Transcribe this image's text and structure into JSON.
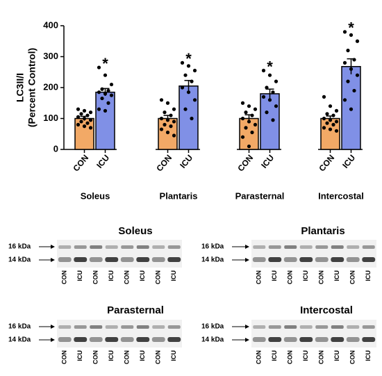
{
  "chart_data": {
    "type": "bar",
    "y_label": [
      "LC3II/I",
      "(Percent Control)"
    ],
    "categories": [
      "Soleus",
      "Plantaris",
      "Parasternal",
      "Intercostal"
    ],
    "series": [
      {
        "name": "CON",
        "color": "#f2a966",
        "values": [
          100,
          100,
          100,
          100
        ],
        "errors": [
          7,
          10,
          12,
          8
        ],
        "points": [
          [
            130,
            125,
            120,
            115,
            110,
            105,
            100,
            95,
            90,
            85,
            80,
            75,
            70
          ],
          [
            160,
            150,
            130,
            120,
            110,
            100,
            95,
            90,
            80,
            75,
            65,
            55,
            45
          ],
          [
            150,
            140,
            130,
            120,
            110,
            100,
            90,
            80,
            70,
            55,
            40,
            10
          ],
          [
            170,
            140,
            125,
            115,
            110,
            100,
            95,
            90,
            85,
            80,
            70,
            65,
            60
          ]
        ]
      },
      {
        "name": "ICU",
        "color": "#8090e6",
        "values": [
          185,
          205,
          180,
          268
        ],
        "errors": [
          12,
          18,
          15,
          25
        ],
        "points": [
          [
            265,
            240,
            210,
            195,
            190,
            185,
            180,
            175,
            165,
            150,
            130,
            125
          ],
          [
            280,
            270,
            255,
            240,
            220,
            200,
            185,
            160,
            130,
            100
          ],
          [
            255,
            240,
            220,
            200,
            185,
            170,
            160,
            140,
            120,
            95
          ],
          [
            380,
            370,
            350,
            320,
            290,
            280,
            260,
            240,
            220,
            190,
            160,
            130
          ]
        ]
      }
    ],
    "annotations": [
      "*",
      "*",
      "*",
      "*"
    ],
    "ylim": [
      0,
      400
    ],
    "yticks": [
      0,
      100,
      200,
      300,
      400
    ]
  },
  "blots": [
    {
      "title": "Soleus",
      "markers": [
        "16 kDa",
        "14 kDa"
      ],
      "lanes": [
        "CON",
        "ICU",
        "CON",
        "ICU",
        "CON",
        "ICU",
        "CON",
        "ICU"
      ]
    },
    {
      "title": "Plantaris",
      "markers": [
        "16 kDa",
        "14 kDa"
      ],
      "lanes": [
        "CON",
        "ICU",
        "CON",
        "ICU",
        "CON",
        "ICU",
        "CON",
        "ICU"
      ]
    },
    {
      "title": "Parasternal",
      "markers": [
        "16 kDa",
        "14 kDa"
      ],
      "lanes": [
        "CON",
        "ICU",
        "CON",
        "ICU",
        "CON",
        "ICU",
        "CON",
        "ICU"
      ]
    },
    {
      "title": "Intercostal",
      "markers": [
        "16 kDa",
        "14 kDa"
      ],
      "lanes": [
        "CON",
        "ICU",
        "CON",
        "ICU",
        "CON",
        "ICU",
        "CON",
        "ICU"
      ]
    }
  ]
}
